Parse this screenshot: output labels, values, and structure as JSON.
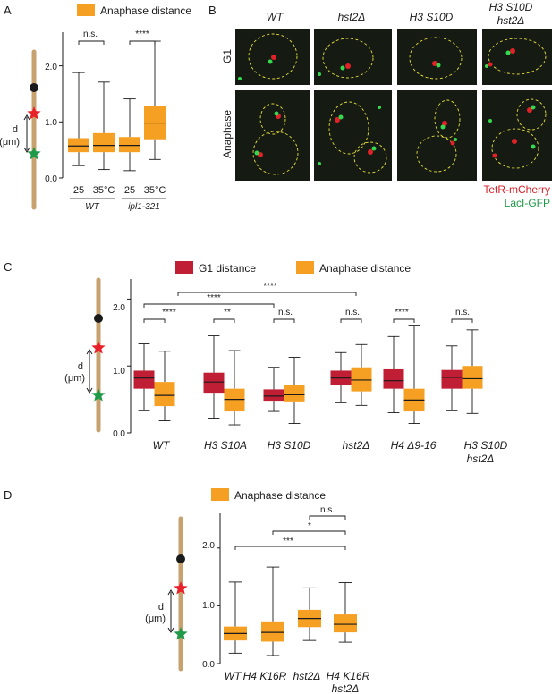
{
  "panels": {
    "A": {
      "letter": "A",
      "legend": "Anaphase distance",
      "y_ticks": [
        "0.0",
        "1.0",
        "2.0"
      ],
      "x_labels": [
        "25",
        "35°C",
        "25",
        "35°C"
      ],
      "groups": [
        "WT",
        "ipl1-321"
      ],
      "sig": [
        "n.s.",
        "****"
      ],
      "d_label": "d"
    },
    "B": {
      "letter": "B",
      "col_titles": [
        "WT",
        "hst2Δ",
        "H3 S10D",
        "H3 S10D",
        "hst2Δ"
      ],
      "row_labels": [
        "G1",
        "Anaphase"
      ],
      "channel_1": "TetR-mCherry",
      "channel_2": "LacI-GFP"
    },
    "C": {
      "letter": "C",
      "legend_g1": "G1 distance",
      "legend_ana": "Anaphase distance",
      "y_ticks": [
        "0.0",
        "1.0",
        "2.0"
      ],
      "x_labels": [
        "WT",
        "H3 S10A",
        "H3 S10D",
        "hst2Δ",
        "H4 Δ9-16",
        "H3 S10D",
        "hst2Δ"
      ],
      "sig_within": [
        "****",
        "**",
        "n.s.",
        "n.s.",
        "****",
        "n.s."
      ],
      "sig_between": [
        "****",
        "****"
      ],
      "d_label": "d",
      "unit_label": "(μm)"
    },
    "D": {
      "letter": "D",
      "legend": "Anaphase distance",
      "y_ticks": [
        "0.0",
        "1.0",
        "2.0"
      ],
      "x_labels": [
        "WT",
        "H4 K16R",
        "hst2Δ",
        "H4 K16R",
        "hst2Δ"
      ],
      "sig": [
        "n.s.",
        "*",
        "***"
      ],
      "d_label": "d",
      "unit_label": "(μm)"
    }
  },
  "unit_A": "(μm)",
  "colors": {
    "red": "#c01e35",
    "orange": "#f5a023",
    "chromosome": "#c8a26e",
    "green": "#1f9a49",
    "star_red": "#e8202a"
  },
  "chart_data": [
    {
      "type": "box",
      "panel": "A",
      "title": "",
      "ylabel": "",
      "ylim": [
        0,
        2.6
      ],
      "categories": [
        "25 WT",
        "35°C WT",
        "25 ipl1-321",
        "35°C ipl1-321"
      ],
      "series": [
        {
          "name": "Anaphase distance",
          "boxes": [
            {
              "min": 0.22,
              "q1": 0.46,
              "median": 0.57,
              "q3": 0.71,
              "max": 1.88
            },
            {
              "min": 0.15,
              "q1": 0.46,
              "median": 0.58,
              "q3": 0.8,
              "max": 1.71
            },
            {
              "min": 0.13,
              "q1": 0.46,
              "median": 0.58,
              "q3": 0.73,
              "max": 1.41
            },
            {
              "min": 0.33,
              "q1": 0.69,
              "median": 0.98,
              "q3": 1.28,
              "max": 2.44
            }
          ]
        }
      ]
    },
    {
      "type": "box",
      "panel": "C",
      "title": "",
      "ylabel": "",
      "ylim": [
        0,
        2.3
      ],
      "categories": [
        "WT",
        "H3 S10A",
        "H3 S10D",
        "hst2Δ",
        "H4 Δ9-16",
        "H3 S10D hst2Δ"
      ],
      "series": [
        {
          "name": "G1 distance",
          "boxes": [
            {
              "min": 0.33,
              "q1": 0.66,
              "median": 0.82,
              "q3": 0.93,
              "max": 1.33
            },
            {
              "min": 0.22,
              "q1": 0.6,
              "median": 0.76,
              "q3": 0.9,
              "max": 1.45
            },
            {
              "min": 0.32,
              "q1": 0.48,
              "median": 0.55,
              "q3": 0.65,
              "max": 0.98
            },
            {
              "min": 0.45,
              "q1": 0.71,
              "median": 0.82,
              "q3": 0.93,
              "max": 1.2
            },
            {
              "min": 0.3,
              "q1": 0.66,
              "median": 0.78,
              "q3": 0.95,
              "max": 1.44
            },
            {
              "min": 0.33,
              "q1": 0.66,
              "median": 0.83,
              "q3": 0.94,
              "max": 1.3
            }
          ]
        },
        {
          "name": "Anaphase distance",
          "boxes": [
            {
              "min": 0.18,
              "q1": 0.4,
              "median": 0.56,
              "q3": 0.76,
              "max": 1.22
            },
            {
              "min": 0.12,
              "q1": 0.32,
              "median": 0.5,
              "q3": 0.66,
              "max": 1.23
            },
            {
              "min": 0.14,
              "q1": 0.47,
              "median": 0.57,
              "q3": 0.72,
              "max": 1.13
            },
            {
              "min": 0.41,
              "q1": 0.62,
              "median": 0.79,
              "q3": 0.98,
              "max": 1.32
            },
            {
              "min": 0.14,
              "q1": 0.32,
              "median": 0.49,
              "q3": 0.66,
              "max": 1.61
            },
            {
              "min": 0.29,
              "q1": 0.66,
              "median": 0.81,
              "q3": 1.0,
              "max": 1.54
            }
          ]
        }
      ]
    },
    {
      "type": "box",
      "panel": "D",
      "title": "",
      "ylabel": "",
      "ylim": [
        0,
        2.6
      ],
      "categories": [
        "WT",
        "H4 K16R",
        "hst2Δ",
        "H4 K16R hst2Δ"
      ],
      "series": [
        {
          "name": "Anaphase distance",
          "boxes": [
            {
              "min": 0.18,
              "q1": 0.4,
              "median": 0.52,
              "q3": 0.64,
              "max": 1.41
            },
            {
              "min": 0.14,
              "q1": 0.38,
              "median": 0.54,
              "q3": 0.73,
              "max": 1.67
            },
            {
              "min": 0.4,
              "q1": 0.63,
              "median": 0.78,
              "q3": 0.93,
              "max": 1.31
            },
            {
              "min": 0.37,
              "q1": 0.54,
              "median": 0.68,
              "q3": 0.85,
              "max": 1.4
            }
          ]
        }
      ]
    }
  ]
}
